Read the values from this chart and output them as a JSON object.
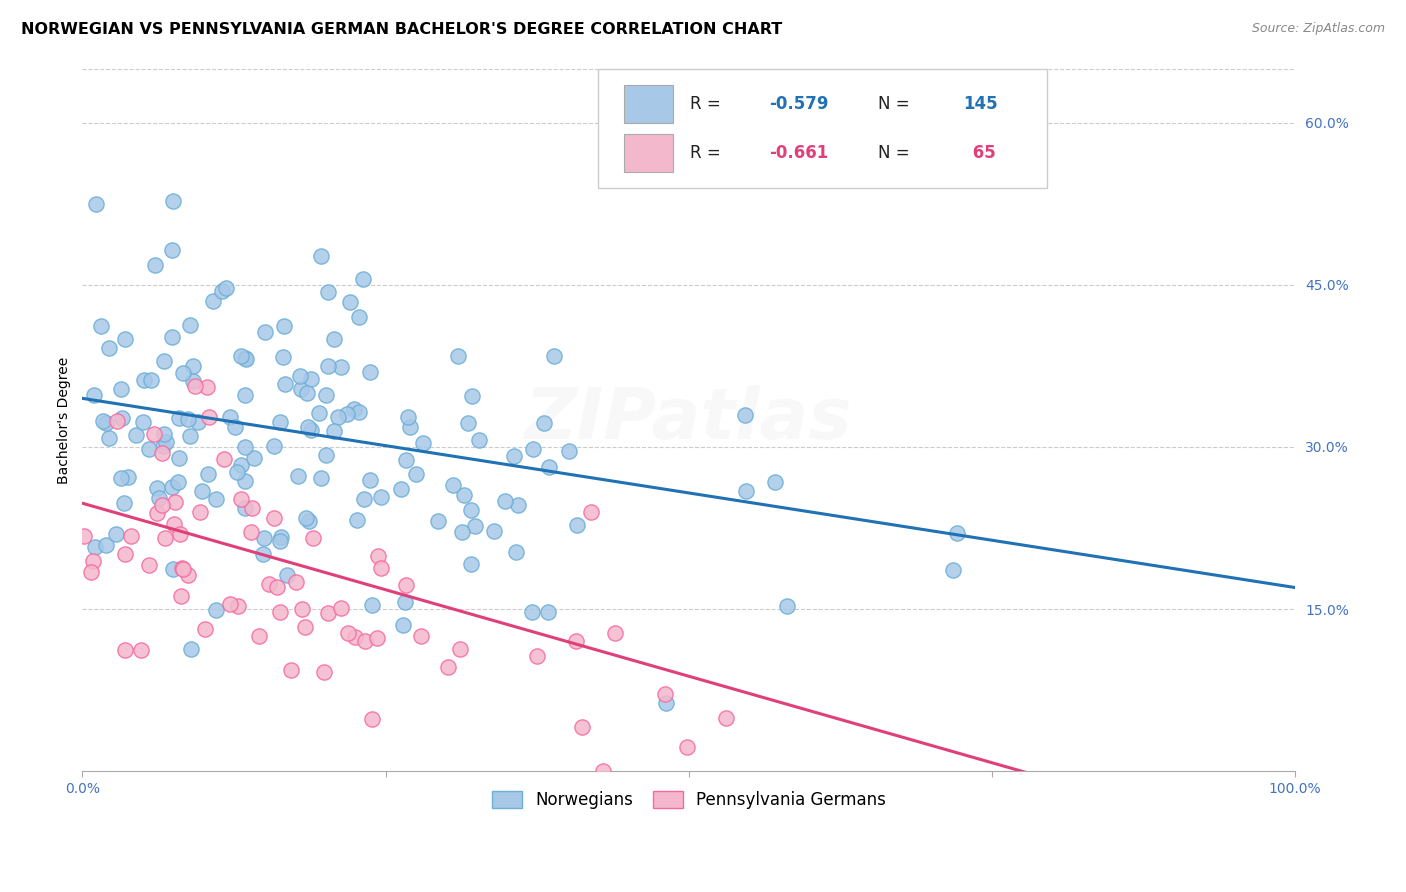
{
  "title": "NORWEGIAN VS PENNSYLVANIA GERMAN BACHELOR'S DEGREE CORRELATION CHART",
  "source": "Source: ZipAtlas.com",
  "ylabel": "Bachelor's Degree",
  "watermark": "ZIPatlas",
  "blue_color": "#a8c8e8",
  "blue_edge_color": "#6baed6",
  "pink_color": "#f4b8cc",
  "pink_edge_color": "#f768a1",
  "blue_line_color": "#2171b5",
  "pink_line_color": "#e0407a",
  "blue_n": 145,
  "pink_n": 65,
  "xlim": [
    0.0,
    1.0
  ],
  "ylim": [
    0.0,
    0.65
  ],
  "ytick_vals": [
    0.15,
    0.3,
    0.45,
    0.6
  ],
  "ytick_labels": [
    "15.0%",
    "30.0%",
    "45.0%",
    "60.0%"
  ],
  "blue_scatter_seed": 42,
  "pink_scatter_seed": 77,
  "blue_intercept": 0.345,
  "blue_slope": -0.175,
  "pink_intercept": 0.248,
  "pink_slope": -0.32,
  "title_fontsize": 11.5,
  "source_fontsize": 9,
  "axis_label_fontsize": 10,
  "tick_fontsize": 10,
  "legend_fontsize": 12,
  "watermark_fontsize": 52,
  "watermark_alpha": 0.08,
  "tick_color": "#4472c4"
}
